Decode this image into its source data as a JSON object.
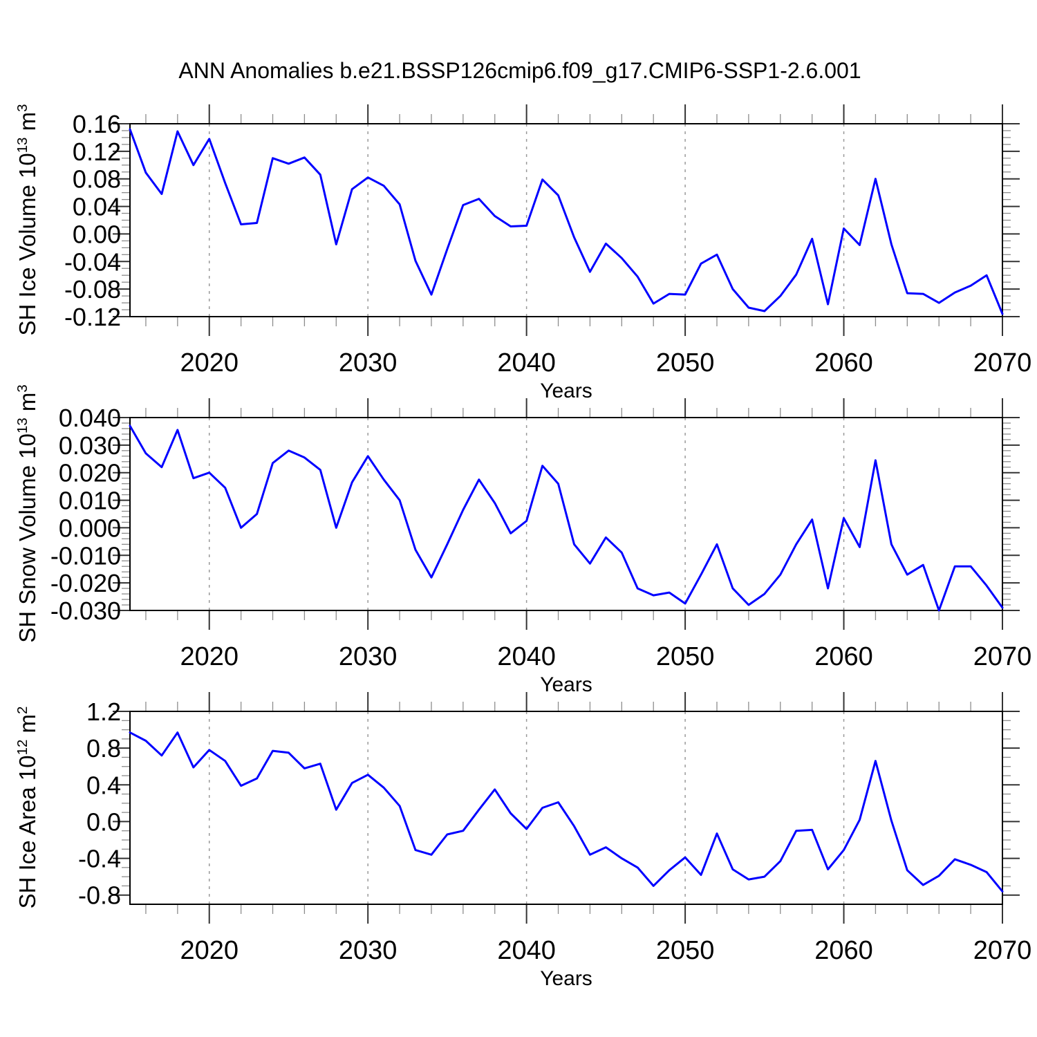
{
  "page": {
    "title": "ANN Anomalies b.e21.BSSP126cmip6.f09_g17.CMIP6-SSP1-2.6.001"
  },
  "years": [
    2015,
    2016,
    2017,
    2018,
    2019,
    2020,
    2021,
    2022,
    2023,
    2024,
    2025,
    2026,
    2027,
    2028,
    2029,
    2030,
    2031,
    2032,
    2033,
    2034,
    2035,
    2036,
    2037,
    2038,
    2039,
    2040,
    2041,
    2042,
    2043,
    2044,
    2045,
    2046,
    2047,
    2048,
    2049,
    2050,
    2051,
    2052,
    2053,
    2054,
    2055,
    2056,
    2057,
    2058,
    2059,
    2060,
    2061,
    2062,
    2063,
    2064,
    2065,
    2066,
    2067,
    2068,
    2069,
    2070
  ],
  "style": {
    "line_color": "#0000ff",
    "grid_color": "#999999",
    "axis_color": "#000000",
    "background": "#ffffff"
  },
  "chart_data": [
    {
      "type": "line",
      "panel": "top",
      "xlabel": "Years",
      "ylabel": {
        "name": "SH Ice Volume",
        "unit_base": "10",
        "unit_exp": "13",
        "unit2_base": "m",
        "unit2_exp": "3"
      },
      "xlim": [
        2015,
        2070
      ],
      "xticks": [
        2020,
        2030,
        2040,
        2050,
        2060,
        2070
      ],
      "xtick_labels": [
        "2020",
        "2030",
        "2040",
        "2050",
        "2060",
        "2070"
      ],
      "x_minor_step": 2,
      "grid_decades": [
        2020,
        2030,
        2040,
        2050,
        2060
      ],
      "ylim": [
        -0.12,
        0.16
      ],
      "yticks": [
        0.16,
        0.12,
        0.08,
        0.04,
        0.0,
        -0.04,
        -0.08,
        -0.12
      ],
      "ytick_labels": [
        "0.16",
        "0.12",
        "0.08",
        "0.04",
        "0.00",
        "-0.04",
        "-0.08",
        "-0.12"
      ],
      "y_minor_step": 0.01,
      "line_color": "#0000ff",
      "values": [
        0.152,
        0.089,
        0.058,
        0.149,
        0.1,
        0.138,
        0.074,
        0.014,
        0.016,
        0.11,
        0.102,
        0.111,
        0.086,
        -0.015,
        0.065,
        0.082,
        0.07,
        0.043,
        -0.039,
        -0.088,
        -0.022,
        0.042,
        0.051,
        0.026,
        0.011,
        0.012,
        0.079,
        0.056,
        -0.005,
        -0.055,
        -0.014,
        -0.035,
        -0.062,
        -0.101,
        -0.087,
        -0.088,
        -0.043,
        -0.03,
        -0.08,
        -0.107,
        -0.112,
        -0.09,
        -0.059,
        -0.007,
        -0.102,
        0.008,
        -0.016,
        0.08,
        -0.015,
        -0.086,
        -0.087,
        -0.1,
        -0.085,
        -0.075,
        -0.06,
        -0.116
      ]
    },
    {
      "type": "line",
      "panel": "middle",
      "xlabel": "Years",
      "ylabel": {
        "name": "SH Snow Volume",
        "unit_base": "10",
        "unit_exp": "13",
        "unit2_base": "m",
        "unit2_exp": "3"
      },
      "xlim": [
        2015,
        2070
      ],
      "xticks": [
        2020,
        2030,
        2040,
        2050,
        2060,
        2070
      ],
      "xtick_labels": [
        "2020",
        "2030",
        "2040",
        "2050",
        "2060",
        "2070"
      ],
      "x_minor_step": 2,
      "grid_decades": [
        2020,
        2030,
        2040,
        2050,
        2060
      ],
      "ylim": [
        -0.03,
        0.04
      ],
      "yticks": [
        0.04,
        0.03,
        0.02,
        0.01,
        0.0,
        -0.01,
        -0.02,
        -0.03
      ],
      "ytick_labels": [
        "0.040",
        "0.030",
        "0.020",
        "0.010",
        "0.000",
        "-0.010",
        "-0.020",
        "-0.030"
      ],
      "y_minor_step": 0.002,
      "line_color": "#0000ff",
      "values": [
        0.037,
        0.027,
        0.022,
        0.0355,
        0.018,
        0.02,
        0.0145,
        0.0,
        0.005,
        0.0235,
        0.028,
        0.0255,
        0.021,
        0.0,
        0.0165,
        0.026,
        0.0175,
        0.01,
        -0.008,
        -0.018,
        -0.006,
        0.0065,
        0.0175,
        0.009,
        -0.002,
        0.0025,
        0.0225,
        0.016,
        -0.006,
        -0.013,
        -0.0035,
        -0.009,
        -0.022,
        -0.0245,
        -0.0235,
        -0.0275,
        -0.017,
        -0.006,
        -0.022,
        -0.028,
        -0.024,
        -0.017,
        -0.006,
        0.003,
        -0.022,
        0.0035,
        -0.007,
        0.0245,
        -0.006,
        -0.017,
        -0.0135,
        -0.03,
        -0.014,
        -0.014,
        -0.021,
        -0.029
      ]
    },
    {
      "type": "line",
      "panel": "bottom",
      "xlabel": "Years",
      "ylabel": {
        "name": "SH Ice Area",
        "unit_base": "10",
        "unit_exp": "12",
        "unit2_base": "m",
        "unit2_exp": "2"
      },
      "xlim": [
        2015,
        2070
      ],
      "xticks": [
        2020,
        2030,
        2040,
        2050,
        2060,
        2070
      ],
      "xtick_labels": [
        "2020",
        "2030",
        "2040",
        "2050",
        "2060",
        "2070"
      ],
      "x_minor_step": 2,
      "grid_decades": [
        2020,
        2030,
        2040,
        2050,
        2060
      ],
      "ylim": [
        -0.9,
        1.2
      ],
      "yticks": [
        1.2,
        0.8,
        0.4,
        0.0,
        -0.4,
        -0.8
      ],
      "ytick_labels": [
        "1.2",
        "0.8",
        "0.4",
        "0.0",
        "-0.4",
        "-0.8"
      ],
      "y_minor_step": 0.1,
      "line_color": "#0000ff",
      "values": [
        0.97,
        0.88,
        0.72,
        0.97,
        0.59,
        0.78,
        0.66,
        0.39,
        0.47,
        0.77,
        0.75,
        0.58,
        0.63,
        0.13,
        0.42,
        0.51,
        0.37,
        0.17,
        -0.31,
        -0.36,
        -0.14,
        -0.1,
        0.13,
        0.35,
        0.09,
        -0.08,
        0.15,
        0.21,
        -0.05,
        -0.36,
        -0.28,
        -0.4,
        -0.5,
        -0.7,
        -0.53,
        -0.39,
        -0.58,
        -0.13,
        -0.52,
        -0.63,
        -0.6,
        -0.43,
        -0.1,
        -0.09,
        -0.52,
        -0.31,
        0.02,
        0.66,
        0.01,
        -0.53,
        -0.69,
        -0.59,
        -0.41,
        -0.47,
        -0.55,
        -0.76
      ]
    }
  ]
}
